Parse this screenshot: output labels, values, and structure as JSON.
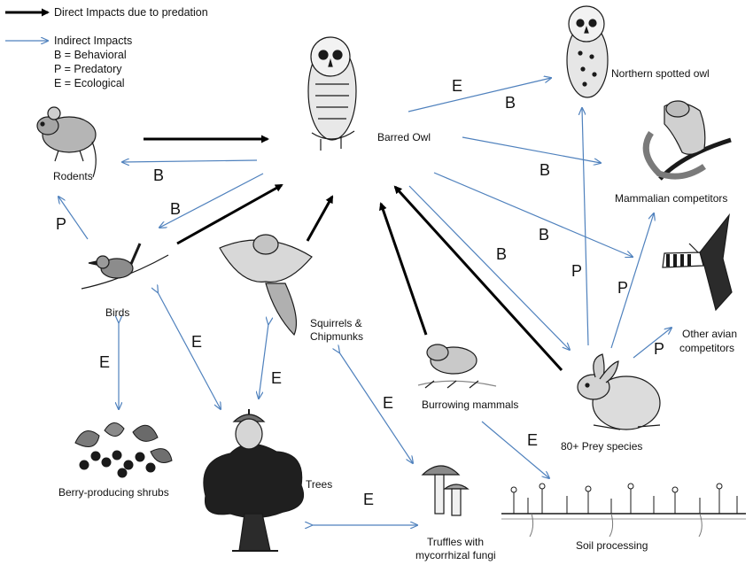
{
  "legend": {
    "direct": "Direct Impacts due to predation",
    "indirect": "Indirect Impacts",
    "key_b": "B = Behavioral",
    "key_p": "P = Predatory",
    "key_e": "E = Ecological"
  },
  "nodes": {
    "barred_owl": "Barred Owl",
    "spotted_owl": "Northern spotted owl",
    "mammalian": "Mammalian competitors",
    "avian_1": "Other avian",
    "avian_2": "competitors",
    "prey": "80+ Prey species",
    "burrowing": "Burrowing mammals",
    "soil": "Soil processing",
    "truffles_1": "Truffles with",
    "truffles_2": "mycorrhizal fungi",
    "trees": "Trees",
    "berry": "Berry-producing shrubs",
    "birds": "Birds",
    "rodents": "Rodents",
    "squirrels_1": "Squirrels &",
    "squirrels_2": "Chipmunks"
  },
  "impact_letters": {
    "e1": "E",
    "b1": "B",
    "b2": "B",
    "b3": "B",
    "b4": "B",
    "b5": "B",
    "b6": "B",
    "b7": "B",
    "p1": "P",
    "p2": "P",
    "p3": "P",
    "p4": "P",
    "e2": "E",
    "e3": "E",
    "e4": "E",
    "e5": "E",
    "e6": "E",
    "e7": "E"
  },
  "colors": {
    "direct_arrow": "#000000",
    "indirect_arrow": "#4f81bd",
    "ink": "#1a1a1a"
  }
}
